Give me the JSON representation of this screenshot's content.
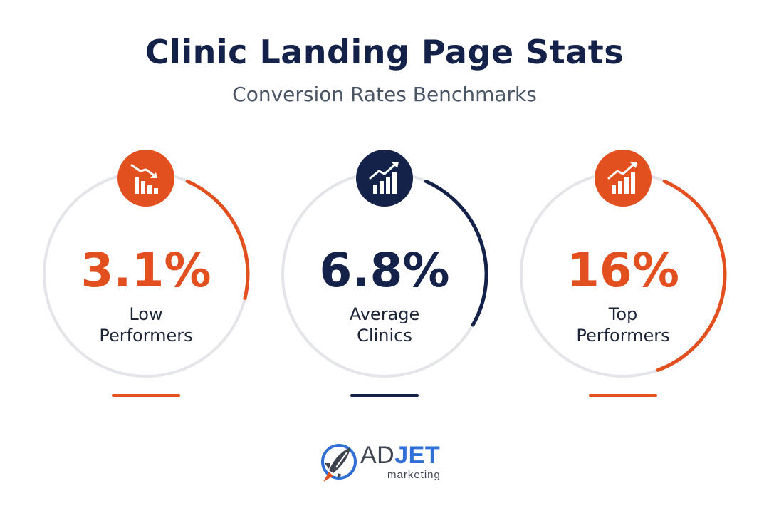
{
  "header": {
    "title": "Clinic Landing Page Stats",
    "subtitle": "Conversion Rates Benchmarks"
  },
  "colors": {
    "orange": "#e2501f",
    "navy": "#14224a",
    "ring_track": "#e4e5e9"
  },
  "chart_data": {
    "type": "radial-progress",
    "title": "Clinic Landing Page Stats",
    "subtitle": "Conversion Rates Benchmarks",
    "unit": "%",
    "items": [
      {
        "display": "3.1%",
        "value": 3.1,
        "label_lines": [
          "Low",
          "Performers"
        ],
        "color": "#e2501f",
        "icon": "bar-chart-down-icon"
      },
      {
        "display": "6.8%",
        "value": 6.8,
        "label_lines": [
          "Average",
          "Clinics"
        ],
        "color": "#14224a",
        "icon": "bar-chart-up-icon"
      },
      {
        "display": "16%",
        "value": 16,
        "label_lines": [
          "Top",
          "Performers"
        ],
        "color": "#e2501f",
        "icon": "bar-chart-up-icon"
      }
    ]
  },
  "brand": {
    "name_light": "AD",
    "name_bold": "JET",
    "tagline": "marketing",
    "icon": "rocket-icon"
  }
}
